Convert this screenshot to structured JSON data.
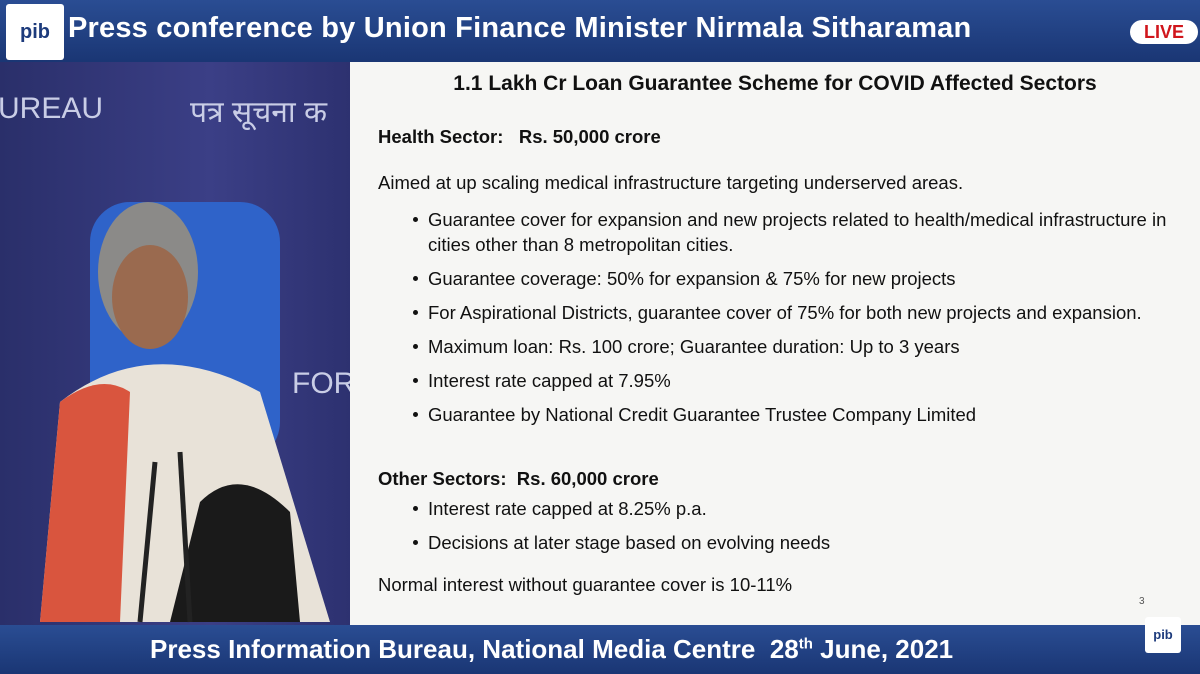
{
  "header": {
    "logo": "pib",
    "title": "Press conference by Union Finance Minister Nirmala Sitharaman",
    "live": "LIVE"
  },
  "video": {
    "wall_texts": [
      "UREAU",
      "पत्र सूचना क",
      "FORI"
    ]
  },
  "slide": {
    "title": "1.1 Lakh Cr Loan Guarantee Scheme for COVID Affected Sectors",
    "sections": [
      {
        "label": "Health Sector:",
        "amount": "Rs. 50,000 crore",
        "intro": "Aimed at up scaling medical infrastructure targeting underserved areas.",
        "bullets": [
          "Guarantee cover for expansion and new projects related to health/medical infrastructure in cities other than 8 metropolitan cities.",
          "Guarantee coverage: 50% for expansion & 75% for new projects",
          "For Aspirational Districts, guarantee cover of 75% for both new projects and expansion.",
          "Maximum loan: Rs. 100 crore;  Guarantee duration: Up to 3 years",
          "Interest rate capped at 7.95%",
          "Guarantee by National Credit Guarantee Trustee Company Limited"
        ]
      },
      {
        "label": "Other Sectors:",
        "amount": "Rs. 60,000 crore",
        "bullets": [
          "Interest rate capped at 8.25% p.a.",
          "Decisions at later stage based on evolving needs"
        ]
      }
    ],
    "note": "Normal interest without guarantee cover is 10-11%",
    "page_number": "3"
  },
  "footer": {
    "text": "Press Information Bureau, National Media Centre",
    "date_day": "28",
    "date_suffix": "th",
    "date_rest": "June, 2021",
    "logo": "pib"
  }
}
